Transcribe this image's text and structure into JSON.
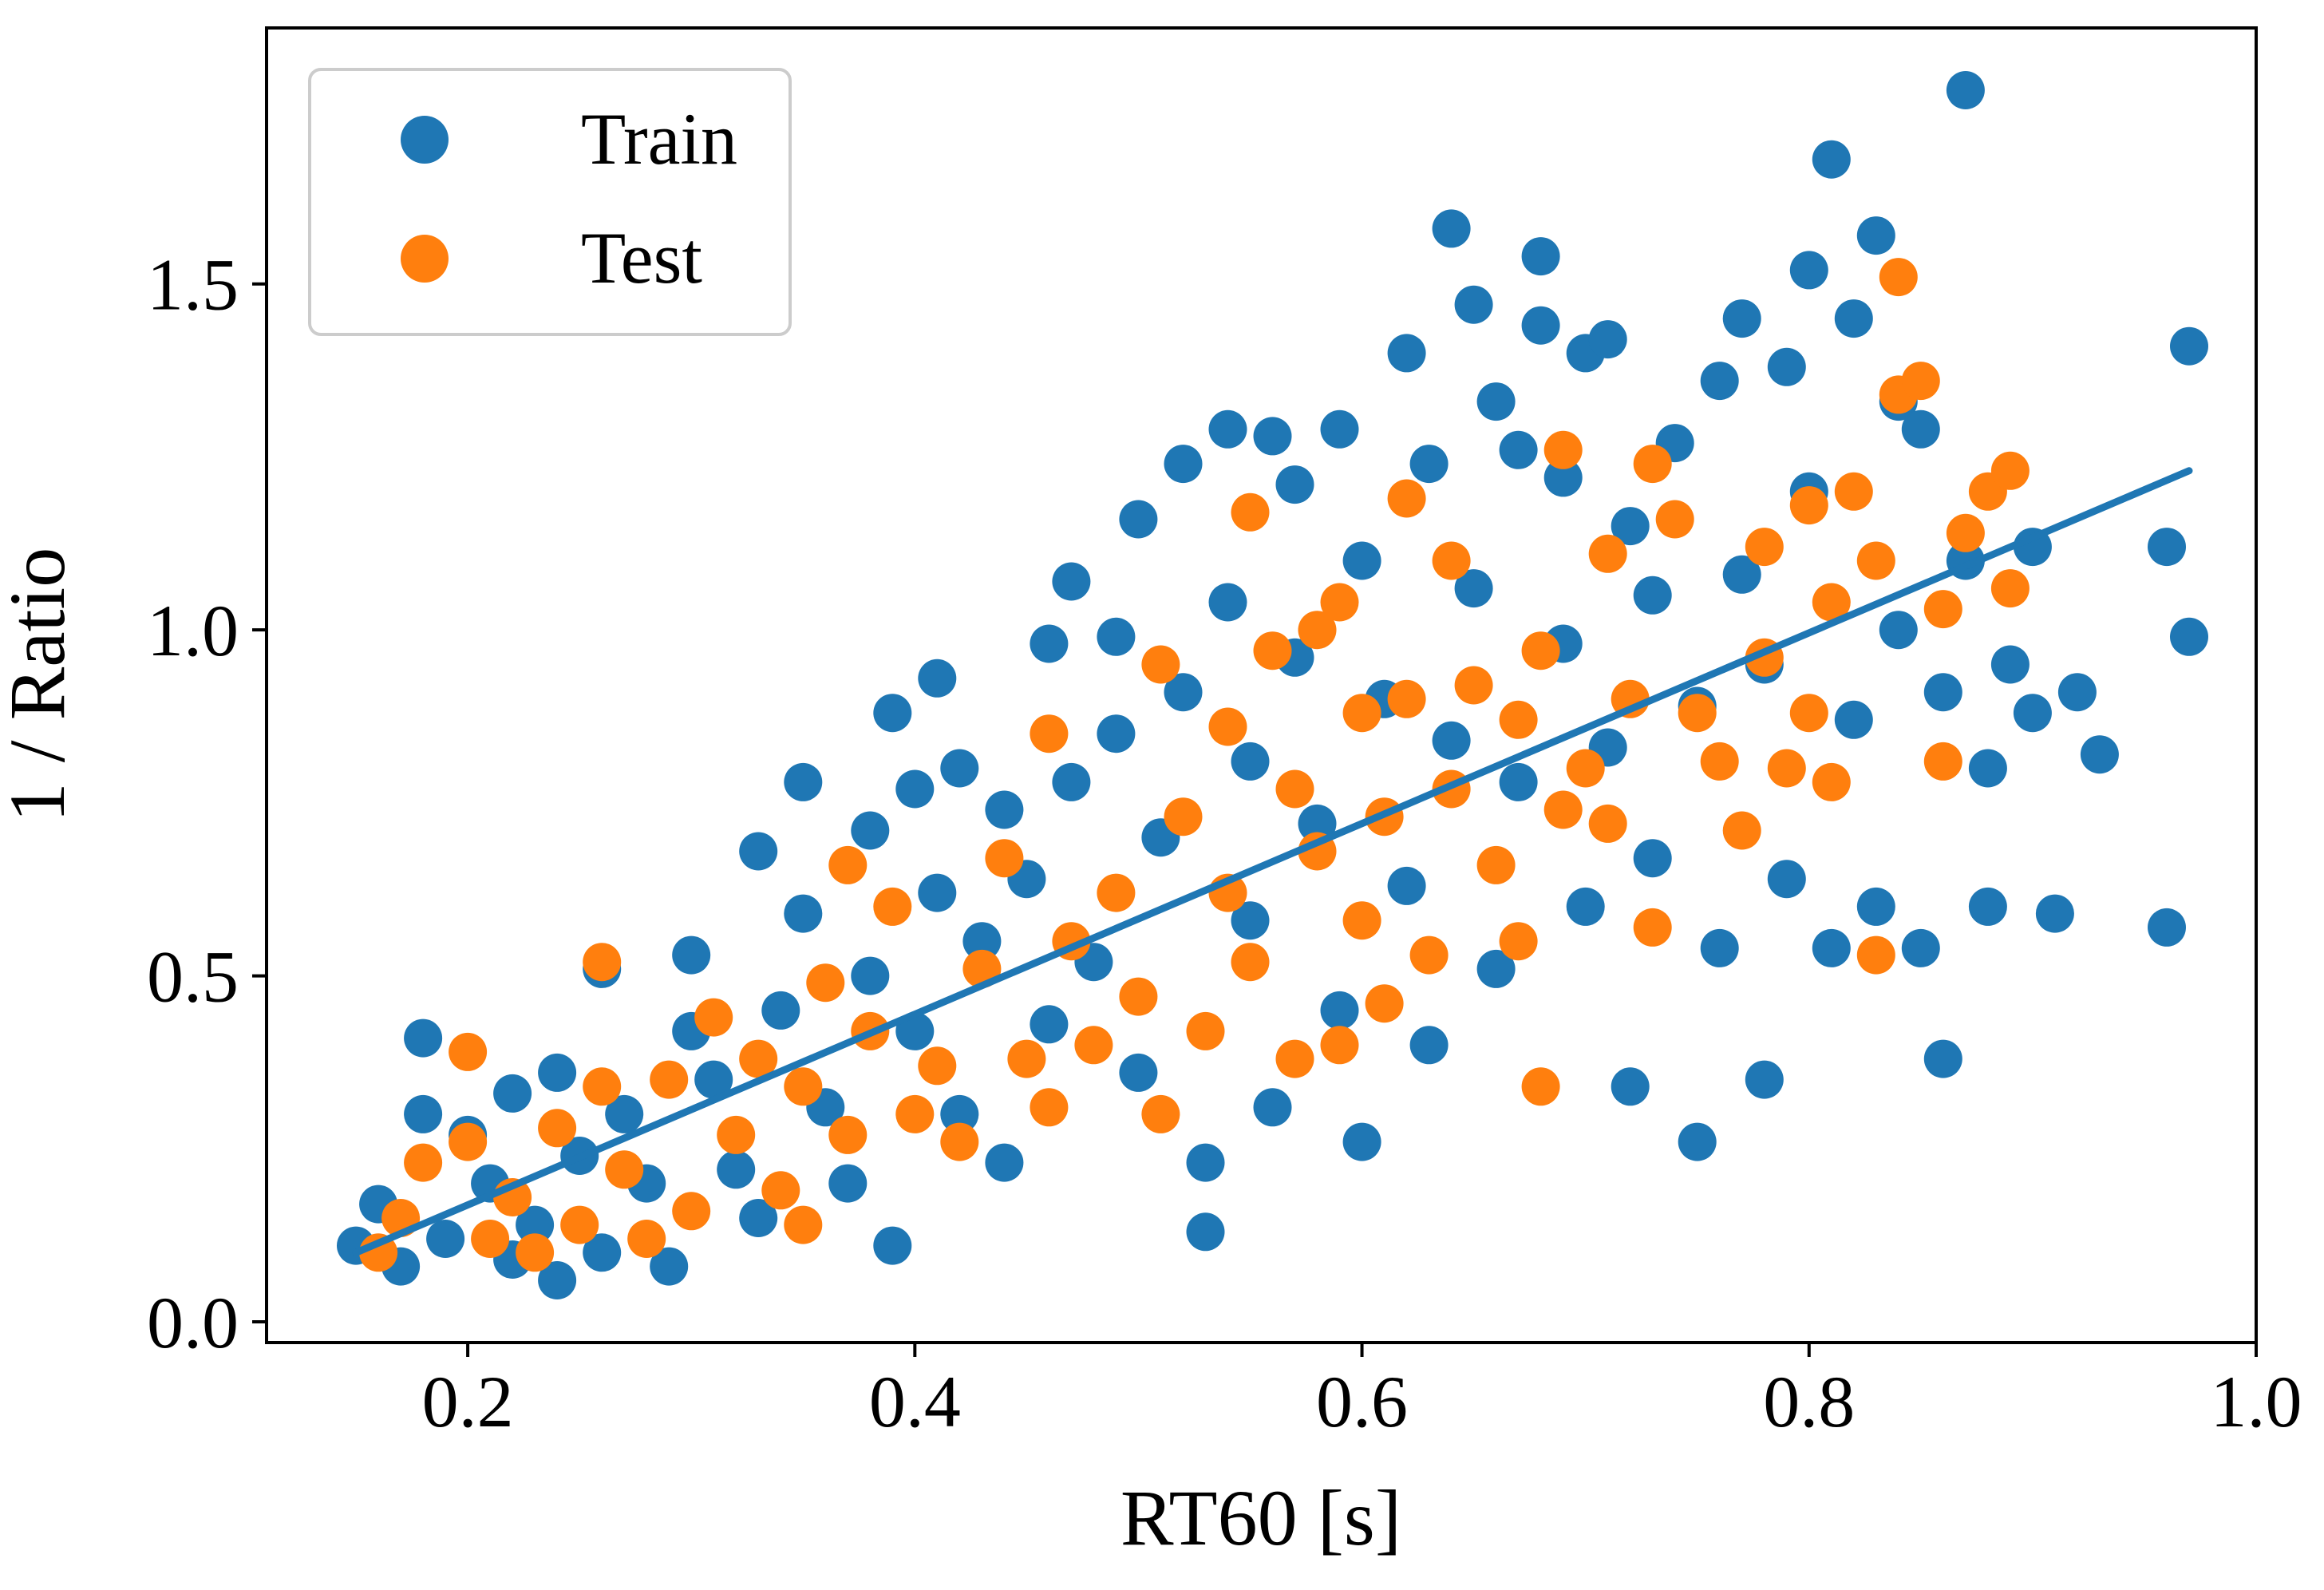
{
  "chart_data": {
    "type": "scatter",
    "title": "",
    "xlabel": "RT60 [s]",
    "ylabel": "1 / Ratio",
    "xlim": [
      0.11,
      1.0
    ],
    "ylim": [
      -0.03,
      1.87
    ],
    "x_ticks": [
      0.2,
      0.4,
      0.6,
      0.8,
      1.0
    ],
    "x_tick_labels": [
      "0.2",
      "0.4",
      "0.6",
      "0.8",
      "1.0"
    ],
    "y_ticks": [
      0.0,
      0.5,
      1.0,
      1.5
    ],
    "y_tick_labels": [
      "0.0",
      "0.5",
      "1.0",
      "1.5"
    ],
    "grid": false,
    "legend_position": "top-left",
    "series": [
      {
        "name": "Train",
        "color": "#1f77b4",
        "points": [
          [
            0.15,
            0.11
          ],
          [
            0.16,
            0.17
          ],
          [
            0.17,
            0.08
          ],
          [
            0.18,
            0.41
          ],
          [
            0.18,
            0.3
          ],
          [
            0.19,
            0.12
          ],
          [
            0.2,
            0.27
          ],
          [
            0.21,
            0.2
          ],
          [
            0.22,
            0.09
          ],
          [
            0.22,
            0.33
          ],
          [
            0.23,
            0.14
          ],
          [
            0.24,
            0.06
          ],
          [
            0.24,
            0.36
          ],
          [
            0.25,
            0.24
          ],
          [
            0.26,
            0.51
          ],
          [
            0.26,
            0.1
          ],
          [
            0.27,
            0.3
          ],
          [
            0.28,
            0.2
          ],
          [
            0.29,
            0.08
          ],
          [
            0.3,
            0.42
          ],
          [
            0.3,
            0.53
          ],
          [
            0.31,
            0.35
          ],
          [
            0.32,
            0.22
          ],
          [
            0.33,
            0.68
          ],
          [
            0.33,
            0.15
          ],
          [
            0.34,
            0.45
          ],
          [
            0.35,
            0.78
          ],
          [
            0.35,
            0.59
          ],
          [
            0.36,
            0.31
          ],
          [
            0.37,
            0.2
          ],
          [
            0.38,
            0.71
          ],
          [
            0.38,
            0.5
          ],
          [
            0.39,
            0.11
          ],
          [
            0.39,
            0.88
          ],
          [
            0.4,
            0.42
          ],
          [
            0.4,
            0.77
          ],
          [
            0.41,
            0.93
          ],
          [
            0.41,
            0.62
          ],
          [
            0.42,
            0.3
          ],
          [
            0.42,
            0.8
          ],
          [
            0.43,
            0.55
          ],
          [
            0.44,
            0.74
          ],
          [
            0.44,
            0.23
          ],
          [
            0.45,
            0.64
          ],
          [
            0.46,
            0.43
          ],
          [
            0.46,
            0.98
          ],
          [
            0.47,
            1.07
          ],
          [
            0.47,
            0.78
          ],
          [
            0.48,
            0.52
          ],
          [
            0.49,
            0.99
          ],
          [
            0.49,
            0.85
          ],
          [
            0.5,
            0.36
          ],
          [
            0.5,
            1.16
          ],
          [
            0.51,
            0.7
          ],
          [
            0.52,
            0.91
          ],
          [
            0.52,
            1.24
          ],
          [
            0.53,
            0.13
          ],
          [
            0.53,
            0.23
          ],
          [
            0.54,
            1.29
          ],
          [
            0.54,
            1.04
          ],
          [
            0.55,
            0.58
          ],
          [
            0.55,
            0.81
          ],
          [
            0.56,
            1.28
          ],
          [
            0.56,
            0.31
          ],
          [
            0.57,
            0.96
          ],
          [
            0.57,
            1.21
          ],
          [
            0.58,
            0.72
          ],
          [
            0.59,
            1.29
          ],
          [
            0.59,
            0.45
          ],
          [
            0.6,
            1.1
          ],
          [
            0.6,
            0.26
          ],
          [
            0.61,
            0.9
          ],
          [
            0.62,
            1.4
          ],
          [
            0.62,
            0.63
          ],
          [
            0.63,
            1.24
          ],
          [
            0.63,
            0.4
          ],
          [
            0.64,
            1.58
          ],
          [
            0.64,
            0.84
          ],
          [
            0.65,
            1.47
          ],
          [
            0.65,
            1.06
          ],
          [
            0.66,
            1.33
          ],
          [
            0.66,
            0.51
          ],
          [
            0.67,
            1.26
          ],
          [
            0.67,
            0.78
          ],
          [
            0.68,
            1.44
          ],
          [
            0.68,
            1.54
          ],
          [
            0.69,
            1.22
          ],
          [
            0.69,
            0.98
          ],
          [
            0.7,
            1.4
          ],
          [
            0.7,
            0.6
          ],
          [
            0.71,
            1.42
          ],
          [
            0.71,
            0.83
          ],
          [
            0.72,
            1.15
          ],
          [
            0.72,
            0.34
          ],
          [
            0.73,
            1.05
          ],
          [
            0.73,
            0.67
          ],
          [
            0.74,
            1.27
          ],
          [
            0.75,
            0.26
          ],
          [
            0.75,
            0.89
          ],
          [
            0.76,
            1.36
          ],
          [
            0.76,
            0.54
          ],
          [
            0.77,
            1.45
          ],
          [
            0.77,
            1.08
          ],
          [
            0.78,
            0.35
          ],
          [
            0.78,
            0.95
          ],
          [
            0.79,
            1.38
          ],
          [
            0.79,
            0.64
          ],
          [
            0.8,
            1.52
          ],
          [
            0.8,
            1.2
          ],
          [
            0.81,
            0.54
          ],
          [
            0.81,
            1.68
          ],
          [
            0.82,
            1.45
          ],
          [
            0.82,
            0.87
          ],
          [
            0.83,
            1.57
          ],
          [
            0.83,
            0.6
          ],
          [
            0.84,
            1.33
          ],
          [
            0.84,
            1.0
          ],
          [
            0.85,
            0.54
          ],
          [
            0.85,
            1.29
          ],
          [
            0.86,
            0.91
          ],
          [
            0.86,
            0.38
          ],
          [
            0.87,
            1.78
          ],
          [
            0.87,
            1.1
          ],
          [
            0.88,
            0.8
          ],
          [
            0.88,
            0.6
          ],
          [
            0.89,
            0.95
          ],
          [
            0.9,
            0.88
          ],
          [
            0.9,
            1.12
          ],
          [
            0.91,
            0.59
          ],
          [
            0.92,
            0.91
          ],
          [
            0.93,
            0.82
          ],
          [
            0.96,
            0.57
          ],
          [
            0.96,
            1.12
          ],
          [
            0.97,
            0.99
          ],
          [
            0.97,
            1.41
          ]
        ]
      },
      {
        "name": "Test",
        "color": "#ff7f0e",
        "points": [
          [
            0.16,
            0.1
          ],
          [
            0.17,
            0.15
          ],
          [
            0.18,
            0.23
          ],
          [
            0.2,
            0.39
          ],
          [
            0.2,
            0.26
          ],
          [
            0.21,
            0.12
          ],
          [
            0.22,
            0.18
          ],
          [
            0.23,
            0.1
          ],
          [
            0.24,
            0.28
          ],
          [
            0.25,
            0.14
          ],
          [
            0.26,
            0.52
          ],
          [
            0.26,
            0.34
          ],
          [
            0.27,
            0.22
          ],
          [
            0.28,
            0.12
          ],
          [
            0.29,
            0.35
          ],
          [
            0.3,
            0.16
          ],
          [
            0.31,
            0.44
          ],
          [
            0.32,
            0.27
          ],
          [
            0.33,
            0.38
          ],
          [
            0.34,
            0.19
          ],
          [
            0.35,
            0.14
          ],
          [
            0.35,
            0.34
          ],
          [
            0.36,
            0.49
          ],
          [
            0.37,
            0.27
          ],
          [
            0.37,
            0.66
          ],
          [
            0.38,
            0.42
          ],
          [
            0.39,
            0.6
          ],
          [
            0.4,
            0.3
          ],
          [
            0.41,
            0.37
          ],
          [
            0.42,
            0.26
          ],
          [
            0.43,
            0.51
          ],
          [
            0.44,
            0.67
          ],
          [
            0.45,
            0.38
          ],
          [
            0.46,
            0.85
          ],
          [
            0.46,
            0.31
          ],
          [
            0.47,
            0.55
          ],
          [
            0.48,
            0.4
          ],
          [
            0.49,
            0.62
          ],
          [
            0.5,
            0.47
          ],
          [
            0.51,
            0.3
          ],
          [
            0.51,
            0.95
          ],
          [
            0.52,
            0.73
          ],
          [
            0.53,
            0.42
          ],
          [
            0.54,
            0.86
          ],
          [
            0.54,
            0.62
          ],
          [
            0.55,
            0.52
          ],
          [
            0.55,
            1.17
          ],
          [
            0.56,
            0.97
          ],
          [
            0.57,
            0.38
          ],
          [
            0.57,
            0.77
          ],
          [
            0.58,
            1.0
          ],
          [
            0.58,
            0.68
          ],
          [
            0.59,
            1.04
          ],
          [
            0.59,
            0.4
          ],
          [
            0.6,
            0.88
          ],
          [
            0.6,
            0.58
          ],
          [
            0.61,
            0.73
          ],
          [
            0.61,
            0.46
          ],
          [
            0.62,
            1.19
          ],
          [
            0.62,
            0.9
          ],
          [
            0.63,
            0.53
          ],
          [
            0.64,
            1.1
          ],
          [
            0.64,
            0.77
          ],
          [
            0.65,
            0.92
          ],
          [
            0.66,
            0.66
          ],
          [
            0.67,
            0.55
          ],
          [
            0.67,
            0.87
          ],
          [
            0.68,
            0.34
          ],
          [
            0.68,
            0.97
          ],
          [
            0.69,
            1.26
          ],
          [
            0.69,
            0.74
          ],
          [
            0.7,
            0.8
          ],
          [
            0.71,
            1.11
          ],
          [
            0.71,
            0.72
          ],
          [
            0.72,
            0.9
          ],
          [
            0.73,
            1.24
          ],
          [
            0.73,
            0.57
          ],
          [
            0.74,
            1.16
          ],
          [
            0.75,
            0.88
          ],
          [
            0.76,
            0.81
          ],
          [
            0.77,
            0.71
          ],
          [
            0.78,
            1.12
          ],
          [
            0.78,
            0.96
          ],
          [
            0.79,
            0.8
          ],
          [
            0.8,
            1.18
          ],
          [
            0.8,
            0.88
          ],
          [
            0.81,
            0.78
          ],
          [
            0.81,
            1.04
          ],
          [
            0.82,
            1.2
          ],
          [
            0.83,
            0.53
          ],
          [
            0.83,
            1.1
          ],
          [
            0.84,
            1.51
          ],
          [
            0.84,
            1.34
          ],
          [
            0.85,
            1.36
          ],
          [
            0.86,
            1.03
          ],
          [
            0.86,
            0.81
          ],
          [
            0.87,
            1.14
          ],
          [
            0.88,
            1.2
          ],
          [
            0.89,
            1.06
          ],
          [
            0.89,
            1.23
          ]
        ]
      }
    ],
    "trend_line": {
      "x": [
        0.15,
        0.97
      ],
      "y": [
        0.1,
        1.23
      ],
      "color": "#1f77b4"
    }
  },
  "legend": {
    "items": [
      {
        "label": "Train",
        "color": "#1f77b4"
      },
      {
        "label": "Test",
        "color": "#ff7f0e"
      }
    ]
  }
}
